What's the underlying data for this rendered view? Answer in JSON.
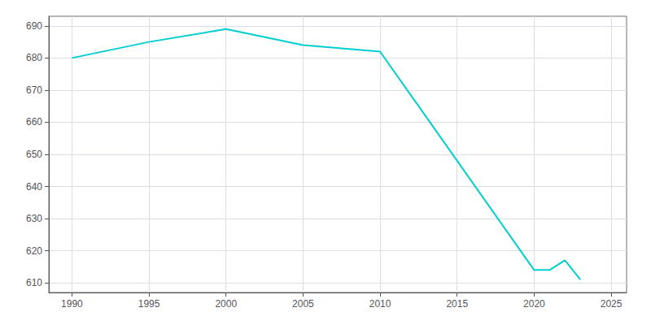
{
  "chart_data": {
    "type": "line",
    "x": [
      1990,
      1995,
      2000,
      2005,
      2010,
      2020,
      2021,
      2022,
      2023
    ],
    "values": [
      680,
      685,
      689,
      684,
      682,
      614,
      614,
      617,
      611
    ],
    "color": "#00CED1",
    "xlim": [
      1988.5,
      2026
    ],
    "ylim": [
      607,
      693
    ],
    "xticks": [
      1990,
      1995,
      2000,
      2005,
      2010,
      2015,
      2020,
      2025
    ],
    "yticks": [
      610,
      620,
      630,
      640,
      650,
      660,
      670,
      680,
      690
    ],
    "grid": true
  }
}
